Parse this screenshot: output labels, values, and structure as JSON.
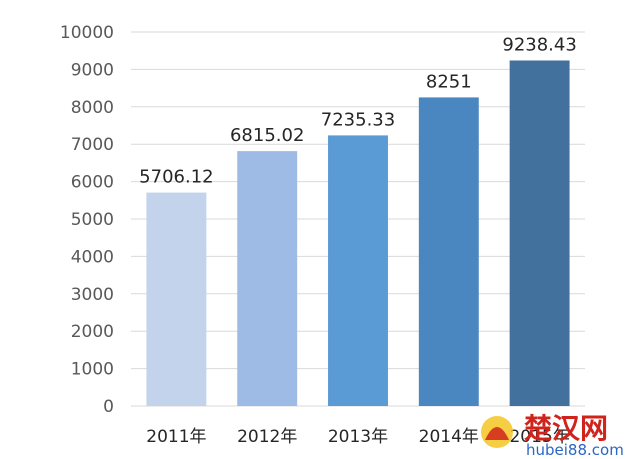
{
  "chart_data": {
    "type": "bar",
    "categories": [
      "2011年",
      "2012年",
      "2013年",
      "2014年",
      "2015年"
    ],
    "values": [
      5706.12,
      6815.02,
      7235.33,
      8251,
      9238.43
    ],
    "data_labels": [
      "5706.12",
      "6815.02",
      "7235.33",
      "8251",
      "9238.43"
    ],
    "title": "",
    "xlabel": "",
    "ylabel": "",
    "ylim": [
      0,
      10000
    ],
    "yticks": [
      0,
      1000,
      2000,
      3000,
      4000,
      5000,
      6000,
      7000,
      8000,
      9000,
      10000
    ],
    "grid": true,
    "legend": "none",
    "bar_colors": [
      "#c3d3eb",
      "#9dbbe4",
      "#5b9bd5",
      "#4a87c0",
      "#41719c"
    ]
  },
  "watermark": {
    "cn": "楚汉网",
    "en": "hubei88.com"
  }
}
